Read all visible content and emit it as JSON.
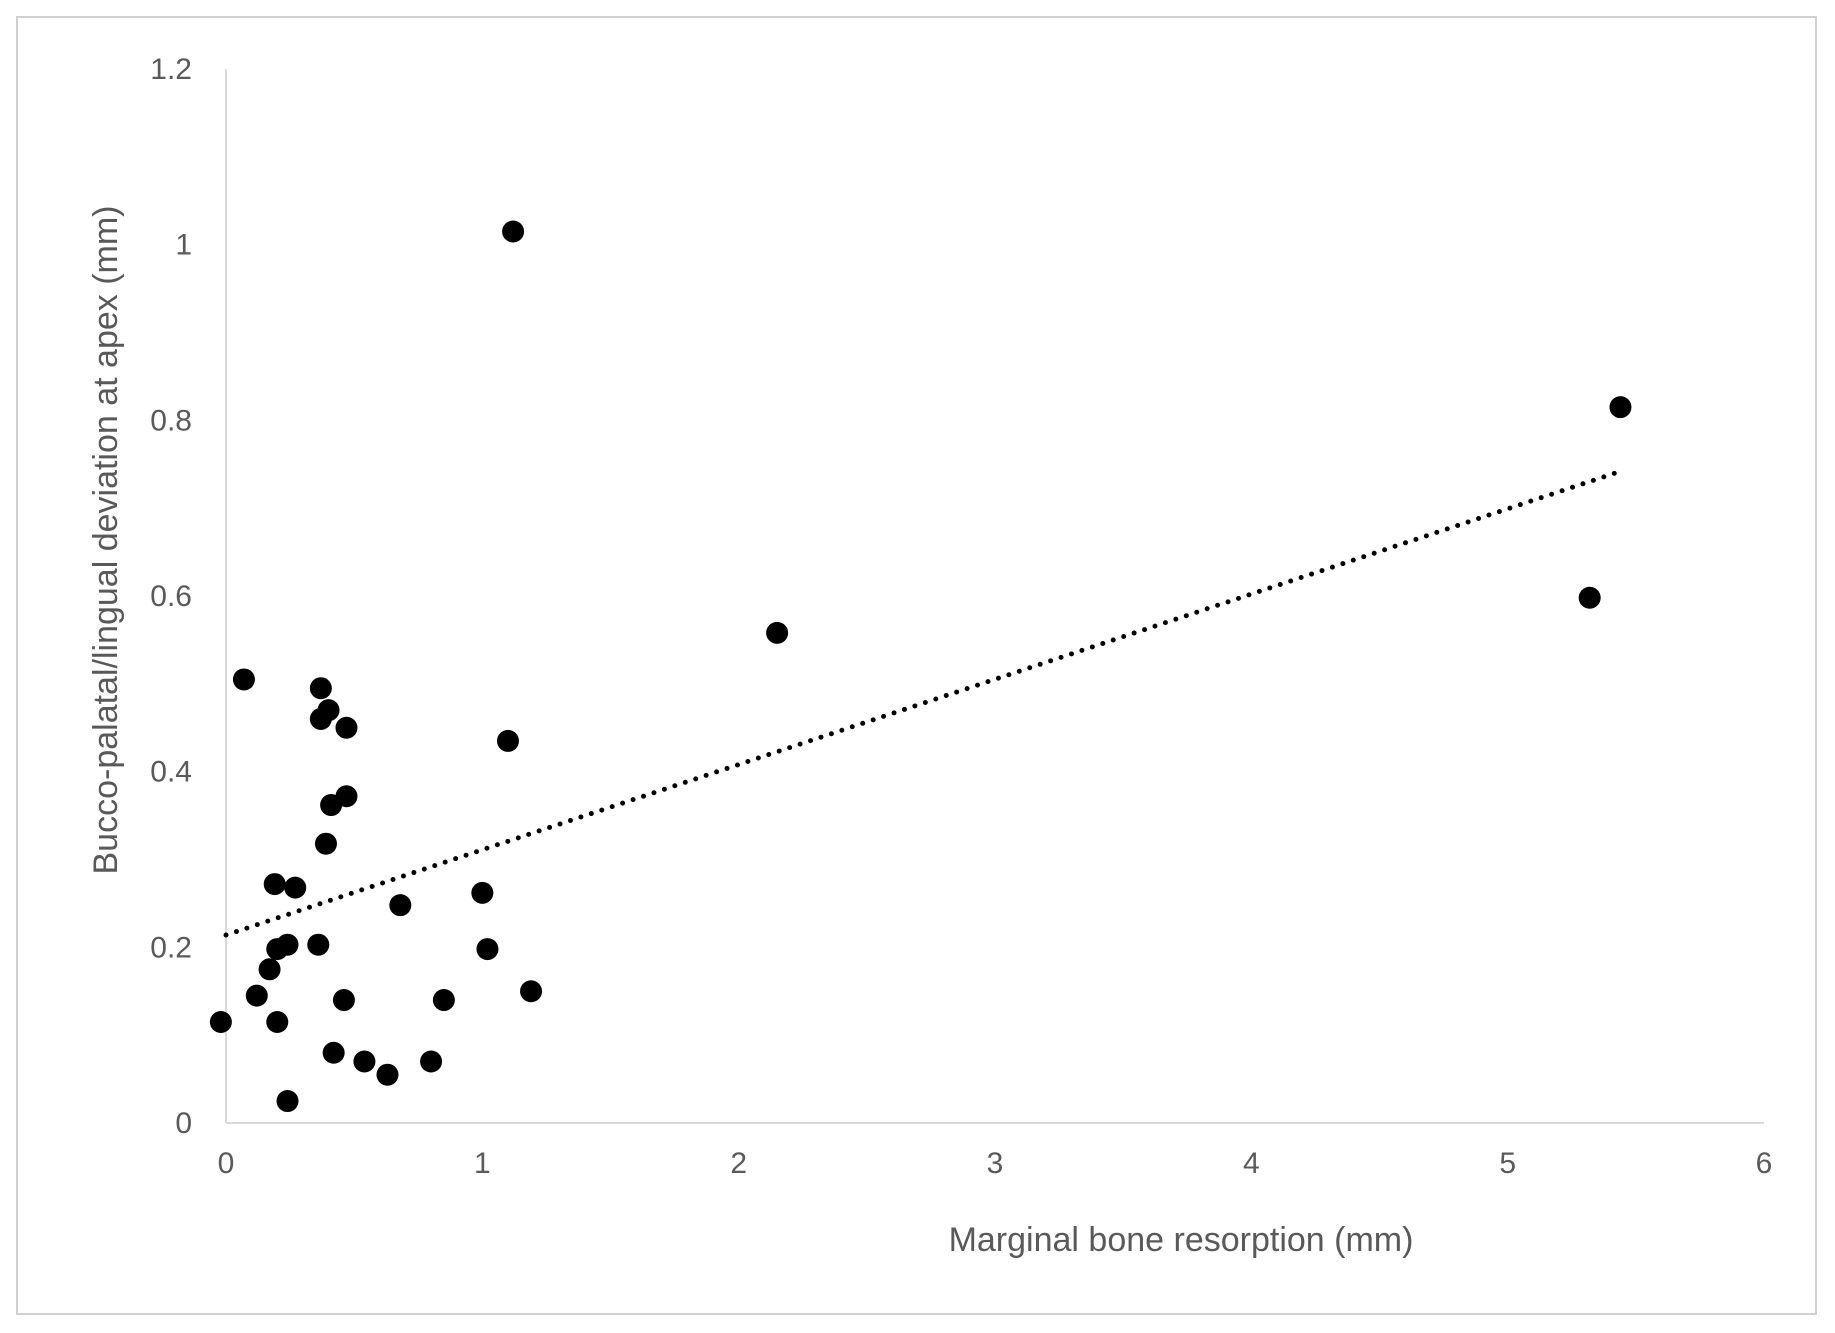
{
  "chart_data": {
    "type": "scatter",
    "title": "",
    "xlabel": "Marginal bone resorption  (mm)",
    "ylabel": "Bucco-palatal/lingual  deviation at apex (mm)",
    "xlim": [
      0,
      6
    ],
    "ylim": [
      0,
      1.2
    ],
    "x_ticks": [
      "0",
      "1",
      "2",
      "3",
      "4",
      "5",
      "6"
    ],
    "y_ticks": [
      "0",
      "0.2",
      "0.4",
      "0.6",
      "0.8",
      "1",
      "1.2"
    ],
    "grid": false,
    "legend": "none",
    "marker_color": "#000000",
    "axis_color": "#d9d9d9",
    "points": [
      {
        "x": -0.02,
        "y": 0.115
      },
      {
        "x": 0.07,
        "y": 0.505
      },
      {
        "x": 0.12,
        "y": 0.145
      },
      {
        "x": 0.17,
        "y": 0.175
      },
      {
        "x": 0.19,
        "y": 0.272
      },
      {
        "x": 0.2,
        "y": 0.198
      },
      {
        "x": 0.2,
        "y": 0.115
      },
      {
        "x": 0.24,
        "y": 0.203
      },
      {
        "x": 0.24,
        "y": 0.025
      },
      {
        "x": 0.27,
        "y": 0.268
      },
      {
        "x": 0.36,
        "y": 0.203
      },
      {
        "x": 0.37,
        "y": 0.495
      },
      {
        "x": 0.37,
        "y": 0.46
      },
      {
        "x": 0.39,
        "y": 0.318
      },
      {
        "x": 0.4,
        "y": 0.47
      },
      {
        "x": 0.41,
        "y": 0.362
      },
      {
        "x": 0.42,
        "y": 0.08
      },
      {
        "x": 0.46,
        "y": 0.14
      },
      {
        "x": 0.47,
        "y": 0.45
      },
      {
        "x": 0.47,
        "y": 0.372
      },
      {
        "x": 0.54,
        "y": 0.07
      },
      {
        "x": 0.63,
        "y": 0.055
      },
      {
        "x": 0.68,
        "y": 0.248
      },
      {
        "x": 0.8,
        "y": 0.07
      },
      {
        "x": 0.85,
        "y": 0.14
      },
      {
        "x": 1.0,
        "y": 0.262
      },
      {
        "x": 1.02,
        "y": 0.198
      },
      {
        "x": 1.1,
        "y": 0.435
      },
      {
        "x": 1.12,
        "y": 1.015
      },
      {
        "x": 1.19,
        "y": 0.15
      },
      {
        "x": 2.15,
        "y": 0.558
      },
      {
        "x": 5.32,
        "y": 0.598
      },
      {
        "x": 5.44,
        "y": 0.815
      }
    ],
    "trendline": {
      "style": "dotted",
      "x_start": 0,
      "y_start": 0.214,
      "x_end": 5.42,
      "y_end": 0.74
    }
  }
}
